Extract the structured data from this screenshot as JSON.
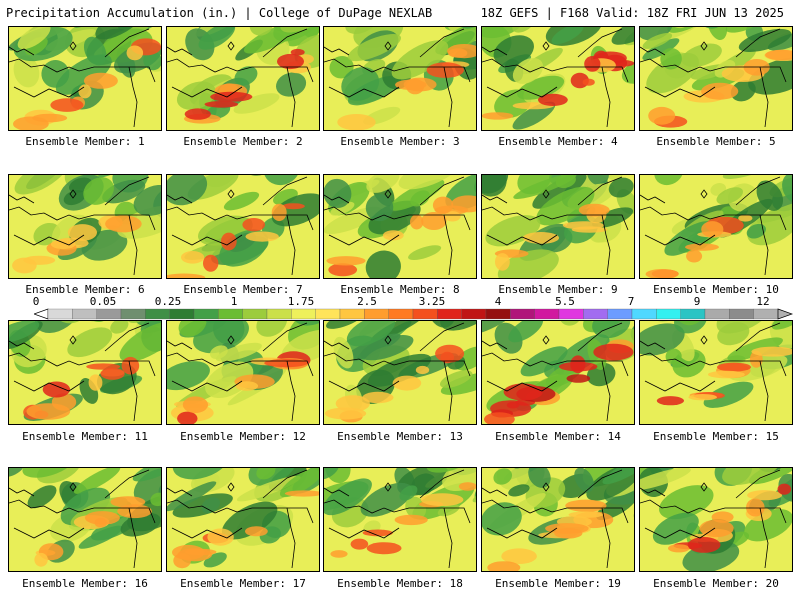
{
  "header": {
    "left": "Precipitation Accumulation (in.) | College of DuPage NEXLAB",
    "right": "18Z GEFS | F168 Valid: 18Z FRI JUN 13 2025"
  },
  "colorbar": {
    "tick_labels": [
      "0",
      "0.05",
      "0.25",
      "1",
      "1.75",
      "2.5",
      "3.25",
      "4",
      "5.5",
      "7",
      "9",
      "12"
    ],
    "colors": [
      "#d9d9d9",
      "#bfbfbf",
      "#9a9a9a",
      "#6f8f6f",
      "#3f8f46",
      "#2e7d32",
      "#43a047",
      "#6bbd33",
      "#9ccc3c",
      "#cbe04a",
      "#eef05b",
      "#ffe45a",
      "#ffc640",
      "#ff9d2e",
      "#ff7a22",
      "#f4501e",
      "#e0241b",
      "#c01515",
      "#951010",
      "#b0157a",
      "#d1189f",
      "#e036e0",
      "#a26cf0",
      "#6c9cff",
      "#4fd8ff",
      "#33f0f0",
      "#2ac4c4",
      "#aaaaaa",
      "#8c8c8c",
      "#b0b0b0"
    ]
  },
  "panels": [
    {
      "label": "Ensemble Member: 1",
      "intensity": 0.45
    },
    {
      "label": "Ensemble Member: 2",
      "intensity": 0.6
    },
    {
      "label": "Ensemble Member: 3",
      "intensity": 0.4
    },
    {
      "label": "Ensemble Member: 4",
      "intensity": 0.7
    },
    {
      "label": "Ensemble Member: 5",
      "intensity": 0.35
    },
    {
      "label": "Ensemble Member: 6",
      "intensity": 0.4
    },
    {
      "label": "Ensemble Member: 7",
      "intensity": 0.42
    },
    {
      "label": "Ensemble Member: 8",
      "intensity": 0.45
    },
    {
      "label": "Ensemble Member: 9",
      "intensity": 0.3
    },
    {
      "label": "Ensemble Member: 10",
      "intensity": 0.4
    },
    {
      "label": "Ensemble Member: 11",
      "intensity": 0.55
    },
    {
      "label": "Ensemble Member: 12",
      "intensity": 0.55
    },
    {
      "label": "Ensemble Member: 13",
      "intensity": 0.4
    },
    {
      "label": "Ensemble Member: 14",
      "intensity": 0.85
    },
    {
      "label": "Ensemble Member: 15",
      "intensity": 0.5
    },
    {
      "label": "Ensemble Member: 16",
      "intensity": 0.35
    },
    {
      "label": "Ensemble Member: 17",
      "intensity": 0.4
    },
    {
      "label": "Ensemble Member: 18",
      "intensity": 0.4
    },
    {
      "label": "Ensemble Member: 19",
      "intensity": 0.55
    },
    {
      "label": "Ensemble Member: 20",
      "intensity": 0.65
    }
  ]
}
